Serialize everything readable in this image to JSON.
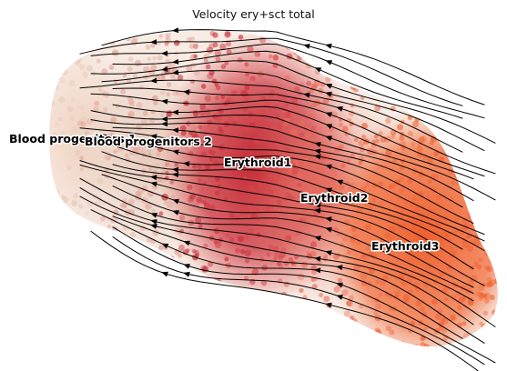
{
  "title": "Velocity ery+sct total",
  "clusters": [
    {
      "name": "Blood progenitors 1",
      "color": "#f2d6c6"
    },
    {
      "name": "Blood progenitors 2",
      "color": "#e7cdbf"
    },
    {
      "name": "Erythroid1",
      "color": "#c72a3a"
    },
    {
      "name": "Erythroid2",
      "color": "#e96d5a"
    },
    {
      "name": "Erythroid3",
      "color": "#f06a36"
    }
  ],
  "stream_color": "#000000"
}
